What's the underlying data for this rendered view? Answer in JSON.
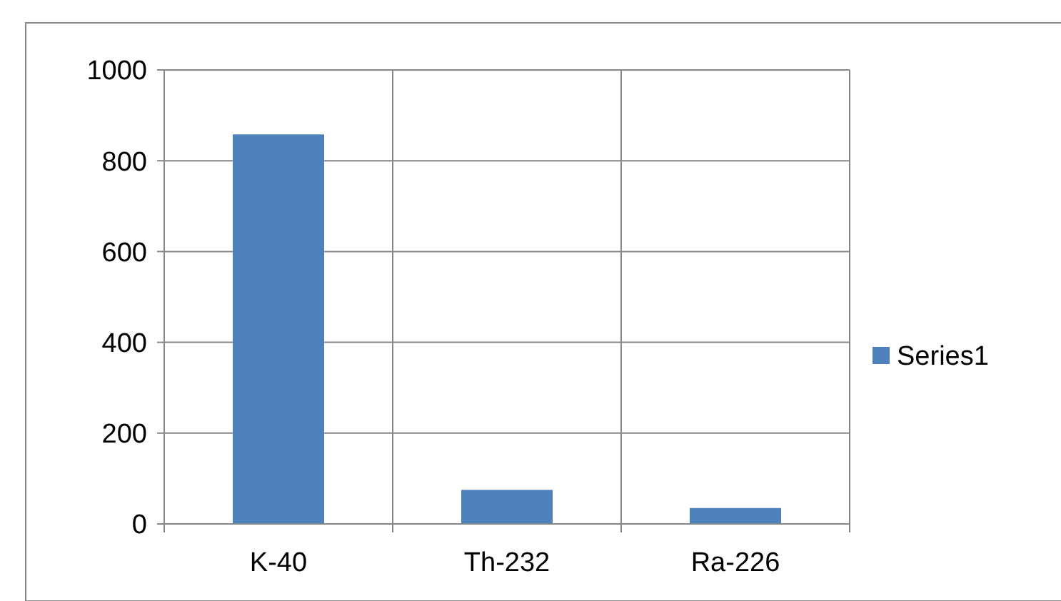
{
  "chart_data": {
    "type": "bar",
    "categories": [
      "K-40",
      "Th-232",
      "Ra-226"
    ],
    "series": [
      {
        "name": "Series1",
        "color": "#4f81bd",
        "values": [
          858,
          75,
          35
        ]
      }
    ],
    "ylim": [
      0,
      1000
    ],
    "yticks": [
      0,
      200,
      400,
      600,
      800,
      1000
    ],
    "grid": true,
    "legend": "right"
  }
}
